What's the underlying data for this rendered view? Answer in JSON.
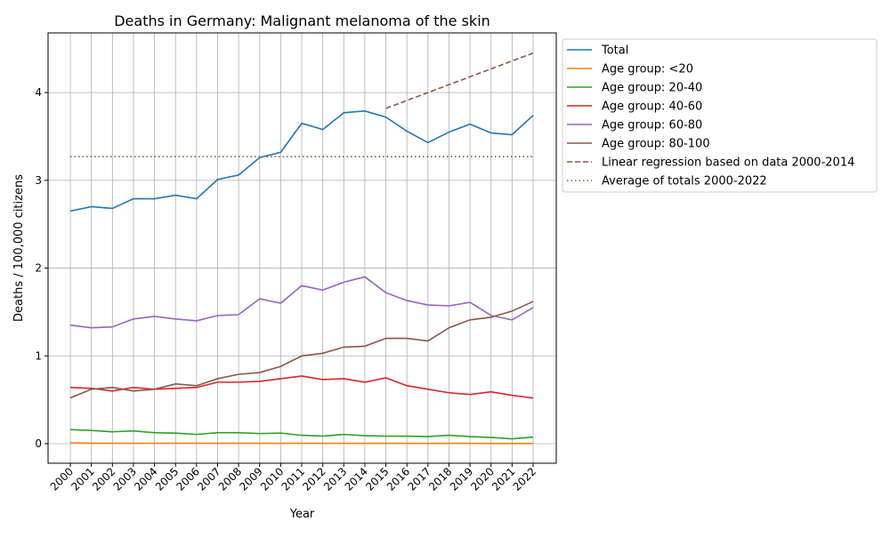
{
  "chart_data": {
    "type": "line",
    "title": "Deaths in Germany: Malignant melanoma of the skin",
    "xlabel": "Year",
    "ylabel": "Deaths / 100,000 citizens",
    "xlim": [
      1998.94,
      2023.1
    ],
    "ylim": [
      -0.223,
      4.68
    ],
    "yticks": [
      0,
      1,
      2,
      3,
      4
    ],
    "grid": true,
    "legend_position": "outside-top-right",
    "x": [
      2000,
      2001,
      2002,
      2003,
      2004,
      2005,
      2006,
      2007,
      2008,
      2009,
      2010,
      2011,
      2012,
      2013,
      2014,
      2015,
      2016,
      2017,
      2018,
      2019,
      2020,
      2021,
      2022
    ],
    "series": [
      {
        "name": "Total",
        "color": "#1f77b4",
        "style": "solid",
        "values": [
          2.65,
          2.7,
          2.68,
          2.79,
          2.79,
          2.83,
          2.79,
          3.01,
          3.06,
          3.26,
          3.32,
          3.65,
          3.58,
          3.77,
          3.79,
          3.72,
          3.56,
          3.43,
          3.55,
          3.64,
          3.54,
          3.52,
          3.74
        ]
      },
      {
        "name": "Age group: <20",
        "color": "#ff7f0e",
        "style": "solid",
        "values": [
          0.01,
          0.006,
          0.005,
          0.003,
          0.005,
          0.005,
          0.004,
          0.005,
          0.004,
          0.004,
          0.004,
          0.004,
          0.003,
          0.003,
          0.003,
          0.003,
          0.003,
          0.002,
          0.003,
          0.003,
          0.002,
          0.002,
          0.002
        ]
      },
      {
        "name": "Age group: 20-40",
        "color": "#2ca02c",
        "style": "solid",
        "values": [
          0.16,
          0.15,
          0.135,
          0.145,
          0.125,
          0.12,
          0.105,
          0.125,
          0.125,
          0.115,
          0.12,
          0.095,
          0.085,
          0.105,
          0.09,
          0.085,
          0.085,
          0.08,
          0.095,
          0.08,
          0.07,
          0.055,
          0.075
        ]
      },
      {
        "name": "Age group: 40-60",
        "color": "#d62728",
        "style": "solid",
        "values": [
          0.64,
          0.63,
          0.6,
          0.64,
          0.62,
          0.63,
          0.64,
          0.7,
          0.7,
          0.71,
          0.74,
          0.77,
          0.73,
          0.74,
          0.7,
          0.75,
          0.66,
          0.62,
          0.58,
          0.56,
          0.59,
          0.55,
          0.52
        ]
      },
      {
        "name": "Age group: 60-80",
        "color": "#9467bd",
        "style": "solid",
        "values": [
          1.35,
          1.32,
          1.33,
          1.42,
          1.45,
          1.42,
          1.4,
          1.46,
          1.47,
          1.65,
          1.6,
          1.8,
          1.75,
          1.84,
          1.9,
          1.72,
          1.63,
          1.58,
          1.57,
          1.61,
          1.46,
          1.41,
          1.55
        ]
      },
      {
        "name": "Age group: 80-100",
        "color": "#8c564b",
        "style": "solid",
        "values": [
          0.52,
          0.62,
          0.64,
          0.6,
          0.62,
          0.68,
          0.66,
          0.74,
          0.79,
          0.81,
          0.88,
          1.0,
          1.03,
          1.1,
          1.11,
          1.2,
          1.2,
          1.17,
          1.32,
          1.41,
          1.44,
          1.51,
          1.62
        ]
      },
      {
        "name": "Linear regression based on data 2000-2014",
        "color": "#8c564b",
        "style": "dashed",
        "x": [
          2015,
          2022
        ],
        "values": [
          3.82,
          4.45
        ]
      },
      {
        "name": "Average of totals 2000-2022",
        "color": "#8c564b",
        "style": "dotted",
        "x": [
          2000,
          2022
        ],
        "values": [
          3.27,
          3.27
        ]
      }
    ]
  }
}
